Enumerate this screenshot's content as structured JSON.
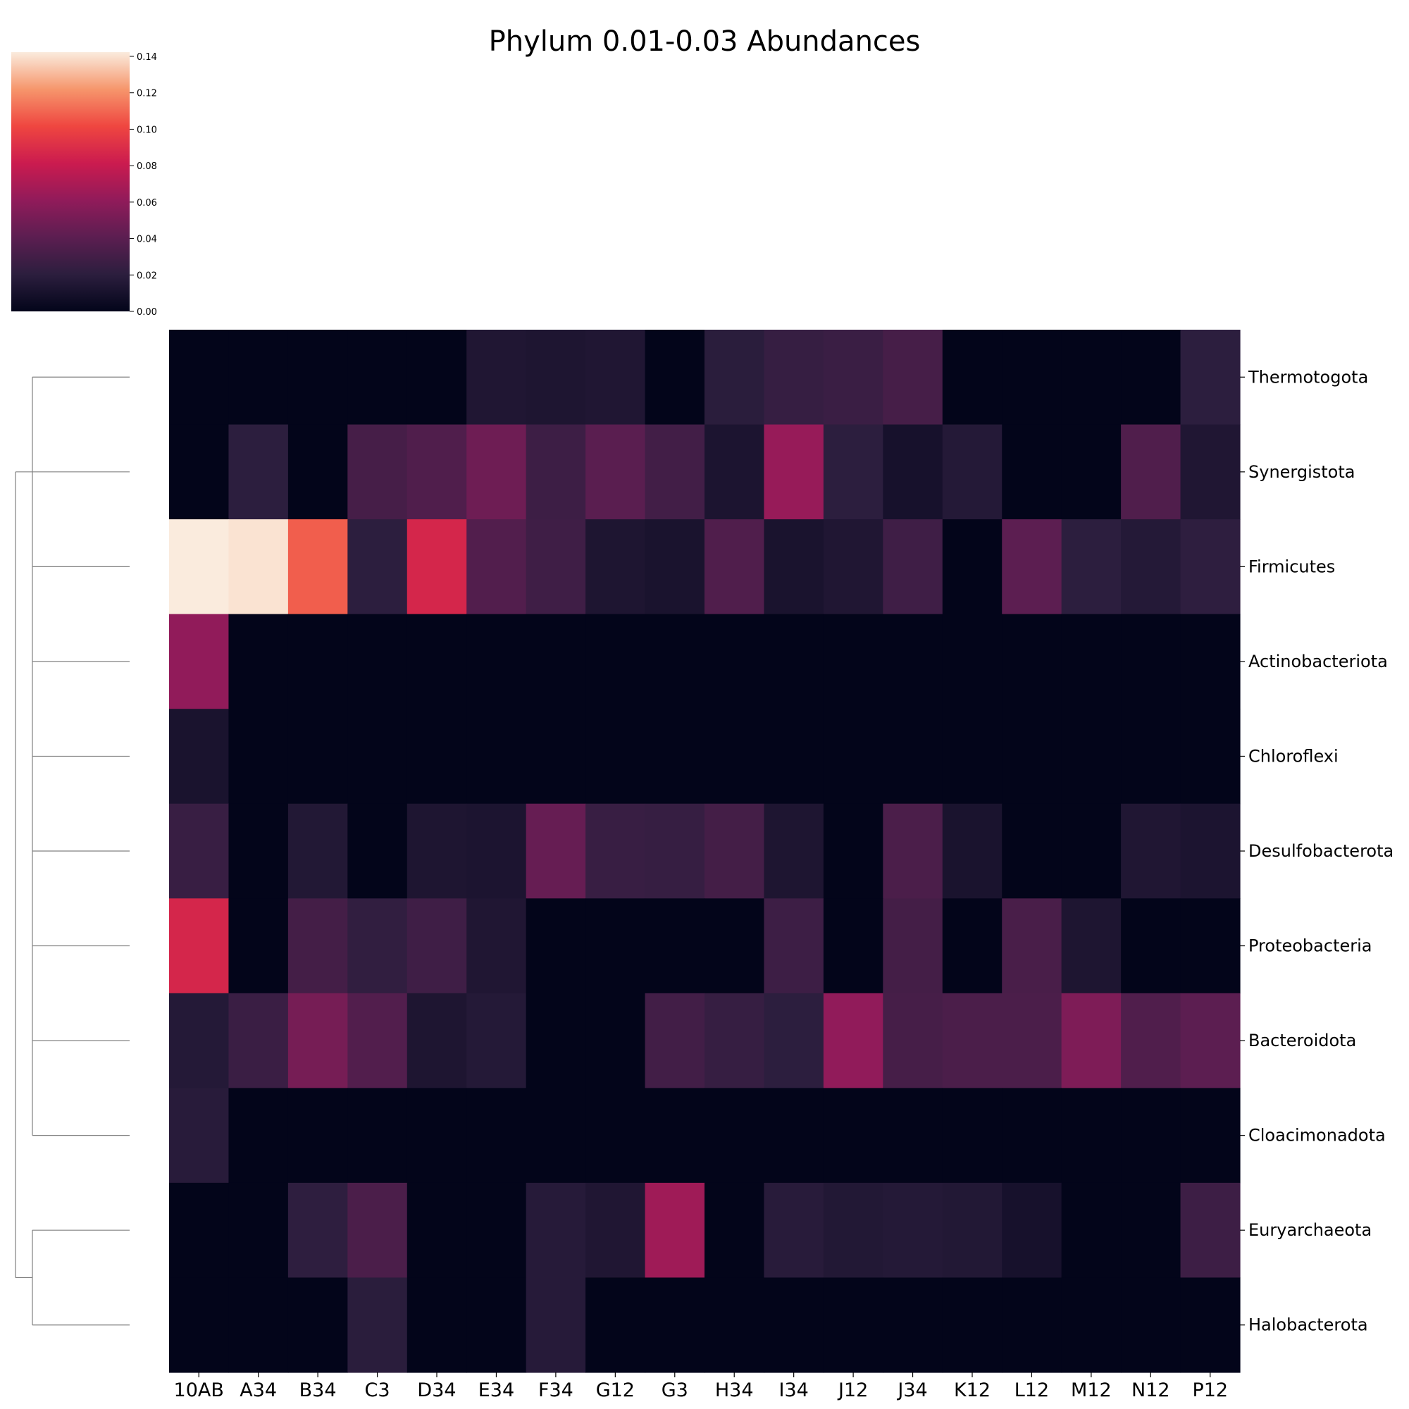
{
  "chart_data": {
    "type": "heatmap",
    "title": "Phylum 0.01-0.03 Abundances",
    "columns": [
      "10AB",
      "A34",
      "B34",
      "C3",
      "D34",
      "E34",
      "F34",
      "G12",
      "G3",
      "H34",
      "I34",
      "J12",
      "J34",
      "K12",
      "L12",
      "M12",
      "N12",
      "P12"
    ],
    "rows": [
      "Thermotogota",
      "Synergistota",
      "Firmicutes",
      "Actinobacteriota",
      "Chloroflexi",
      "Desulfobacterota",
      "Proteobacteria",
      "Bacteroidota",
      "Cloacimonadota",
      "Euryarchaeota",
      "Halobacterota"
    ],
    "values": [
      [
        0.0,
        0.0,
        0.0,
        0.0,
        0.0,
        0.014,
        0.013,
        0.014,
        0.0,
        0.019,
        0.024,
        0.026,
        0.031,
        0.0,
        0.0,
        0.0,
        0.0,
        0.02
      ],
      [
        0.0,
        0.02,
        0.0,
        0.031,
        0.035,
        0.047,
        0.027,
        0.039,
        0.029,
        0.012,
        0.062,
        0.02,
        0.01,
        0.016,
        0.0,
        0.0,
        0.035,
        0.014
      ],
      [
        0.14,
        0.138,
        0.106,
        0.02,
        0.085,
        0.036,
        0.028,
        0.013,
        0.011,
        0.035,
        0.011,
        0.014,
        0.028,
        0.0,
        0.04,
        0.02,
        0.016,
        0.021
      ],
      [
        0.06,
        0,
        0,
        0,
        0,
        0,
        0,
        0,
        0,
        0,
        0,
        0,
        0,
        0,
        0,
        0,
        0,
        0
      ],
      [
        0.011,
        0,
        0,
        0,
        0,
        0,
        0,
        0,
        0,
        0,
        0,
        0,
        0,
        0,
        0,
        0,
        0,
        0
      ],
      [
        0.025,
        0.0,
        0.015,
        0.0,
        0.013,
        0.012,
        0.044,
        0.025,
        0.024,
        0.03,
        0.013,
        0.0,
        0.033,
        0.011,
        0.0,
        0.0,
        0.014,
        0.012
      ],
      [
        0.085,
        0.0,
        0.03,
        0.022,
        0.028,
        0.014,
        0.0,
        0.0,
        0.0,
        0.0,
        0.027,
        0.0,
        0.03,
        0.0,
        0.032,
        0.013,
        0.0,
        0.0
      ],
      [
        0.016,
        0.026,
        0.05,
        0.036,
        0.013,
        0.016,
        0.0,
        0.0,
        0.029,
        0.024,
        0.02,
        0.06,
        0.031,
        0.033,
        0.033,
        0.053,
        0.035,
        0.04
      ],
      [
        0.018,
        0,
        0,
        0,
        0,
        0,
        0,
        0,
        0,
        0,
        0,
        0,
        0,
        0,
        0,
        0,
        0,
        0
      ],
      [
        0.0,
        0.0,
        0.021,
        0.033,
        0.0,
        0.0,
        0.017,
        0.014,
        0.065,
        0.0,
        0.018,
        0.015,
        0.016,
        0.015,
        0.01,
        0.0,
        0.0,
        0.027
      ],
      [
        0.0,
        0.0,
        0.0,
        0.019,
        0.0,
        0.0,
        0.017,
        0.0,
        0.0,
        0.0,
        0.0,
        0.0,
        0.0,
        0.0,
        0.0,
        0.0,
        0.0,
        0.0
      ]
    ],
    "colorbar": {
      "range": [
        0,
        0.14
      ],
      "ticks": [
        "0.00",
        "0.02",
        "0.04",
        "0.06",
        "0.08",
        "0.10",
        "0.12",
        "0.14"
      ],
      "colormap": "rocket"
    },
    "row_dendrogram": true,
    "grid": false
  }
}
